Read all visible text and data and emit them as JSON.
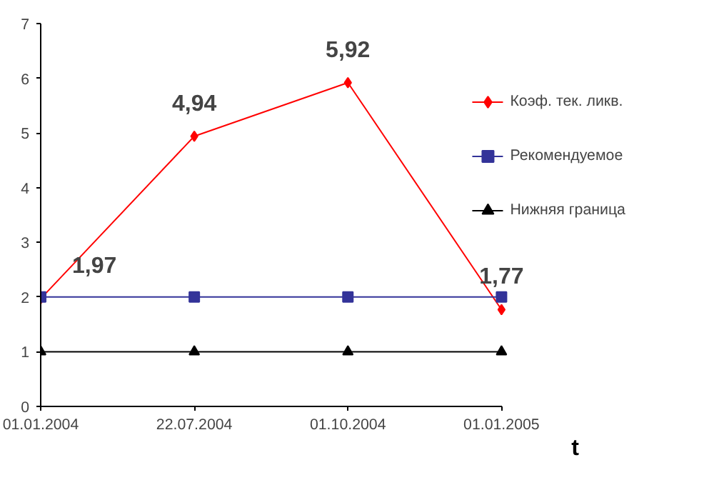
{
  "chart_data": {
    "type": "line",
    "xlabel": "t",
    "categories": [
      "01.01.2004",
      "22.07.2004",
      "01.10.2004",
      "01.01.2005"
    ],
    "ylim": [
      0,
      7
    ],
    "yticks": [
      0,
      1,
      2,
      3,
      4,
      5,
      6,
      7
    ],
    "grid": false,
    "legend": "right",
    "series": [
      {
        "name": "Коэф. тек. ликв.",
        "color": "#ff0000",
        "marker": "diamond",
        "values": [
          1.97,
          4.94,
          5.92,
          1.77
        ],
        "value_labels": [
          "1,97",
          "4,94",
          "5,92",
          "1,77"
        ]
      },
      {
        "name": "Рекомендуемое",
        "color": "#333399",
        "marker": "square",
        "values": [
          2,
          2,
          2,
          2
        ]
      },
      {
        "name": "Нижняя граница",
        "color": "#000000",
        "marker": "triangle",
        "values": [
          1,
          1,
          1,
          1
        ]
      }
    ]
  }
}
